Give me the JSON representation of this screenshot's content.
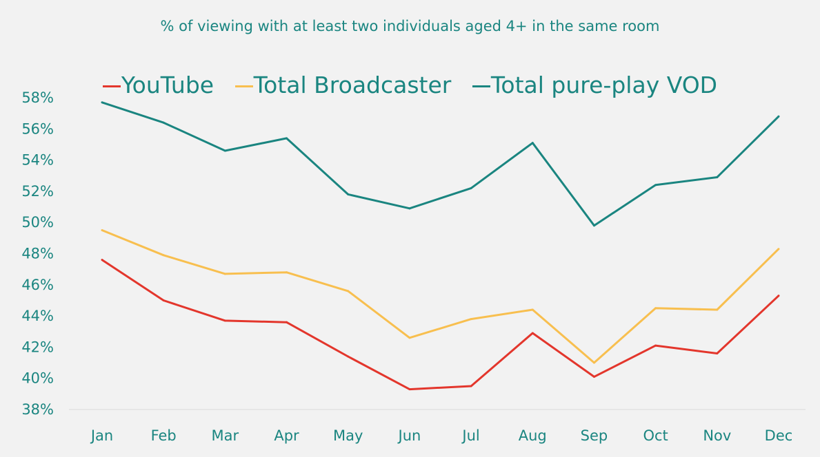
{
  "chart_data": {
    "type": "line",
    "title": "% of viewing with at least two individuals aged 4+ in the same room",
    "xlabel": "",
    "ylabel": "",
    "categories": [
      "Jan",
      "Feb",
      "Mar",
      "Apr",
      "May",
      "Jun",
      "Jul",
      "Aug",
      "Sep",
      "Oct",
      "Nov",
      "Dec"
    ],
    "ylim": [
      38,
      58
    ],
    "yticks": [
      "38%",
      "40%",
      "42%",
      "44%",
      "46%",
      "48%",
      "50%",
      "52%",
      "54%",
      "56%",
      "58%"
    ],
    "grid": false,
    "legend_position": "top",
    "series": [
      {
        "name": "YouTube",
        "color": "#e3362c",
        "values": [
          47.6,
          45.0,
          43.7,
          43.6,
          41.4,
          39.3,
          39.5,
          42.9,
          40.1,
          42.1,
          41.6,
          45.3
        ]
      },
      {
        "name": "Total Broadcaster",
        "color": "#f8bf4f",
        "values": [
          49.5,
          47.9,
          46.7,
          46.8,
          45.6,
          42.6,
          43.8,
          44.4,
          41.0,
          44.5,
          44.4,
          48.3
        ]
      },
      {
        "name": "Total pure-play VOD",
        "color": "#1a8580",
        "values": [
          57.7,
          56.4,
          54.6,
          55.4,
          51.8,
          50.9,
          52.2,
          55.1,
          49.8,
          52.4,
          52.9,
          56.8
        ]
      }
    ]
  }
}
